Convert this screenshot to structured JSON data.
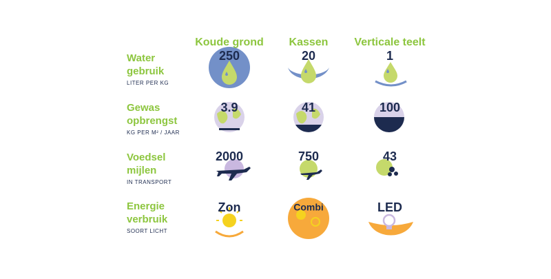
{
  "columns": [
    "Koude grond",
    "Kassen",
    "Verticale teelt"
  ],
  "rows": [
    {
      "title": [
        "Water",
        "gebruik"
      ],
      "subtitle": "LITER PER KG",
      "values": [
        250,
        20,
        1
      ]
    },
    {
      "title": [
        "Gewas",
        "opbrengst"
      ],
      "subtitle": "KG PER M² / JAAR",
      "values": [
        3.9,
        41,
        100
      ]
    },
    {
      "title": [
        "Voedsel",
        "mijlen"
      ],
      "subtitle": "IN TRANSPORT",
      "values": [
        2000,
        750,
        43
      ]
    },
    {
      "title": [
        "Energie",
        "verbruik"
      ],
      "subtitle": "SOORT LICHT",
      "values": [
        "Zon",
        "Combi",
        "LED"
      ]
    }
  ]
}
